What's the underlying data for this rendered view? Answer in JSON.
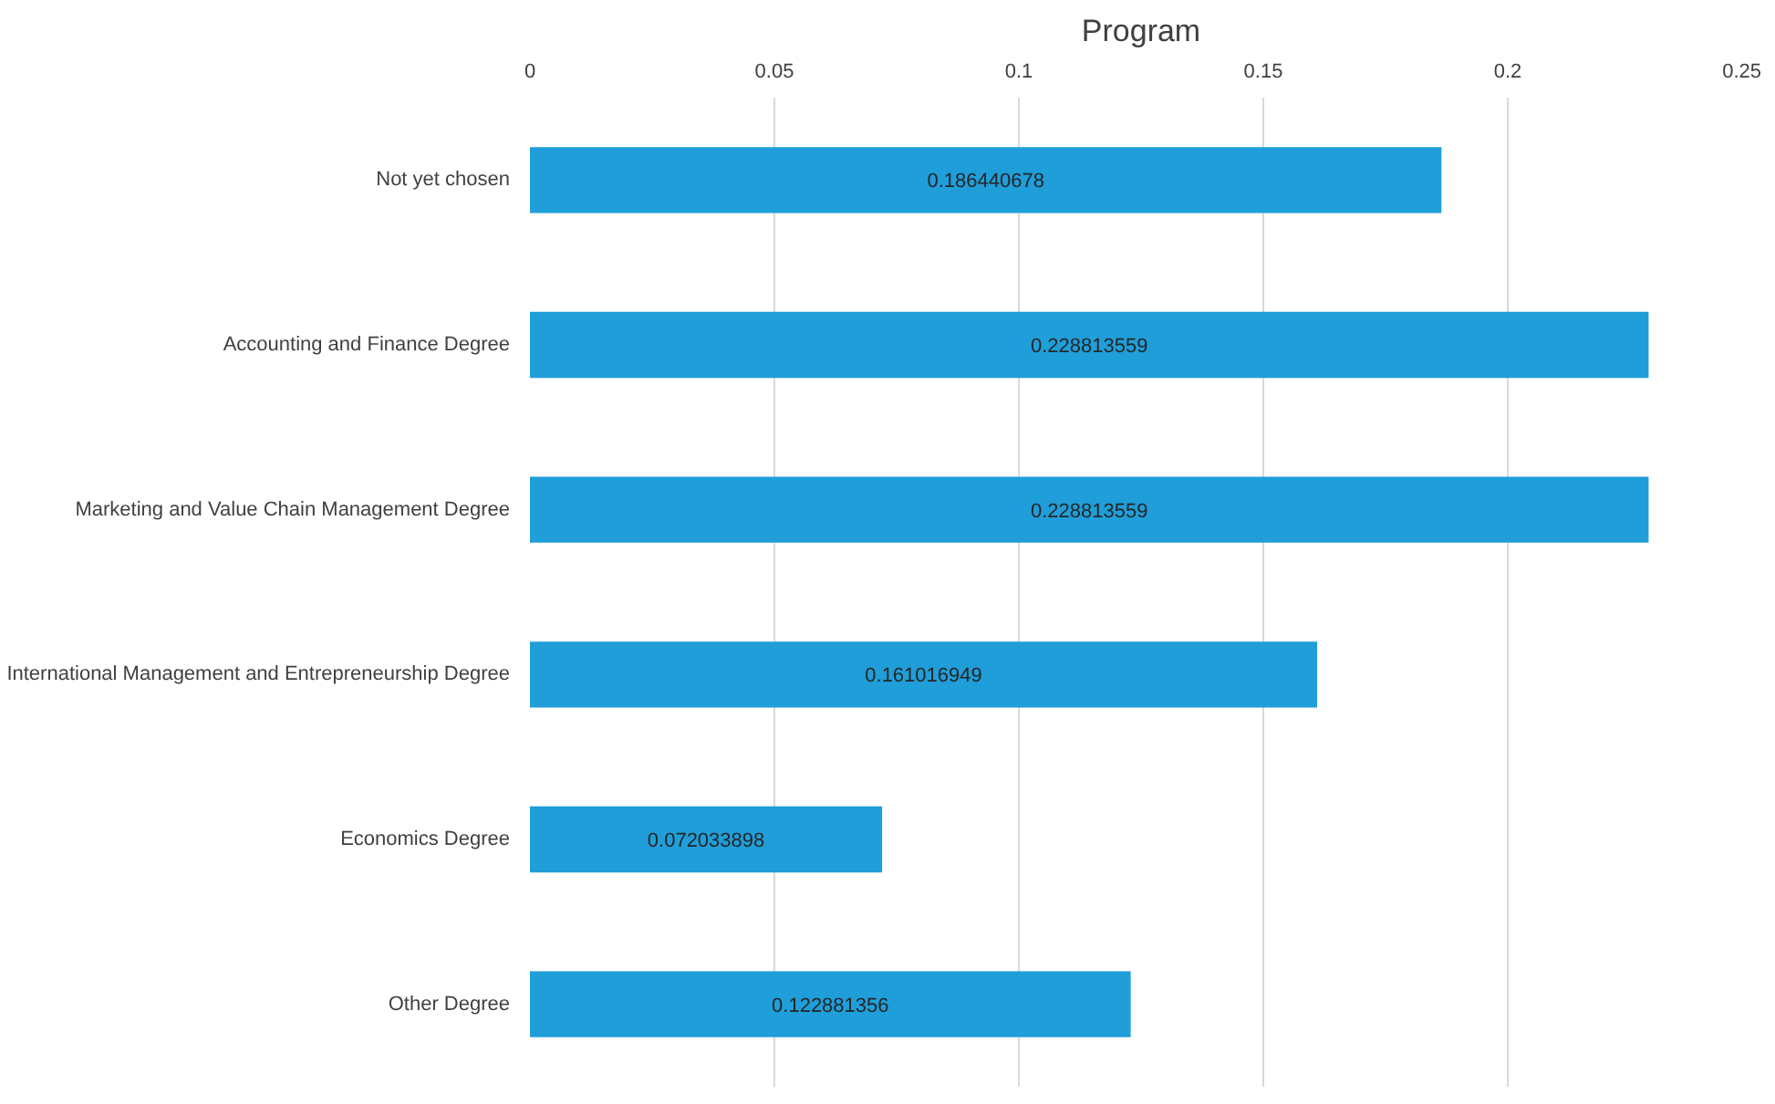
{
  "chart_data": {
    "type": "bar",
    "orientation": "horizontal",
    "title": "Program",
    "categories": [
      "Not yet chosen",
      "Accounting and Finance Degree",
      "Marketing and Value Chain Management Degree",
      "International Management and Entrepreneurship Degree",
      "Economics Degree",
      "Other Degree"
    ],
    "values": [
      0.186440678,
      0.228813559,
      0.228813559,
      0.161016949,
      0.072033898,
      0.122881356
    ],
    "color": "#1f9ed9",
    "xlim": [
      0,
      0.25
    ],
    "xticks": [
      0,
      0.05,
      0.1,
      0.15,
      0.2,
      0.25
    ],
    "grid": "x",
    "data_labels": true
  }
}
